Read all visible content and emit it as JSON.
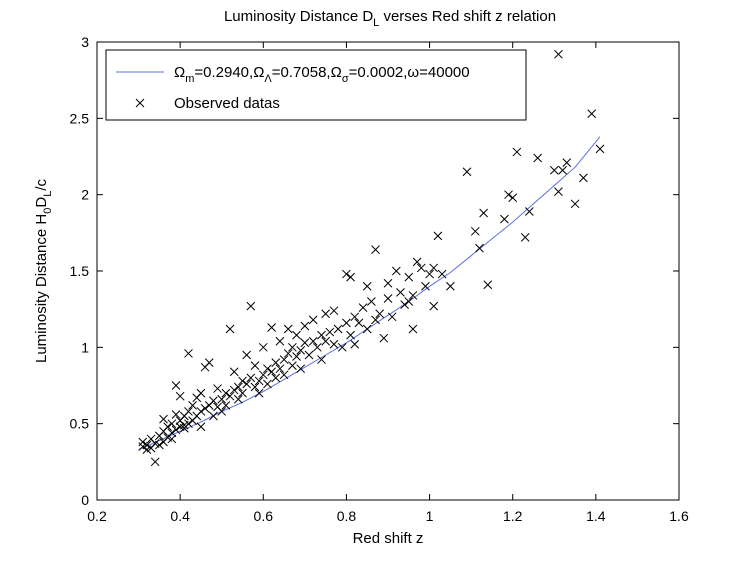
{
  "chart_data": {
    "type": "scatter",
    "title": "Luminosity Distance D",
    "title_sub": "L",
    "title_rest": " verses Red shift z relation",
    "xlabel": "Red shift z",
    "ylabel": "Luminosity Distance H",
    "ylabel_sub1": "0",
    "ylabel_mid": "D",
    "ylabel_sub2": "L",
    "ylabel_rest": "/c",
    "xlim": [
      0.2,
      1.6
    ],
    "ylim": [
      0,
      3
    ],
    "xticks": [
      "0.2",
      "0.4",
      "0.6",
      "0.8",
      "1",
      "1.2",
      "1.4",
      "1.6"
    ],
    "yticks": [
      "0",
      "0.5",
      "1",
      "1.5",
      "2",
      "2.5",
      "3"
    ],
    "grid": false,
    "legend_position": "top-left",
    "colors": {
      "model": "#5b6fe0",
      "observed": "#000000"
    },
    "series": [
      {
        "name": "Ω_m=0.2940,Ω_Λ=0.7058,Ω_σ=0.0002,ω=40000",
        "legend_parts": [
          {
            "text": "Ω",
            "sub": "m"
          },
          {
            "text": "=0.2940,Ω",
            "sub": "Λ"
          },
          {
            "text": "=0.7058,Ω",
            "sub": "σ"
          },
          {
            "text": "=0.0002,ω=40000",
            "sub": ""
          }
        ],
        "kind": "line",
        "x": [
          0.3,
          0.35,
          0.4,
          0.45,
          0.5,
          0.55,
          0.6,
          0.65,
          0.7,
          0.75,
          0.8,
          0.85,
          0.9,
          0.95,
          1.0,
          1.05,
          1.1,
          1.15,
          1.2,
          1.25,
          1.3,
          1.35,
          1.41
        ],
        "y": [
          0.33,
          0.39,
          0.45,
          0.51,
          0.58,
          0.64,
          0.71,
          0.79,
          0.87,
          0.95,
          1.03,
          1.12,
          1.21,
          1.3,
          1.4,
          1.49,
          1.6,
          1.71,
          1.82,
          1.94,
          2.06,
          2.18,
          2.38
        ]
      },
      {
        "name": "Observed datas",
        "kind": "scatter",
        "points": [
          [
            0.31,
            0.35
          ],
          [
            0.31,
            0.38
          ],
          [
            0.32,
            0.33
          ],
          [
            0.32,
            0.36
          ],
          [
            0.33,
            0.34
          ],
          [
            0.33,
            0.4
          ],
          [
            0.34,
            0.25
          ],
          [
            0.34,
            0.37
          ],
          [
            0.35,
            0.36
          ],
          [
            0.35,
            0.42
          ],
          [
            0.36,
            0.38
          ],
          [
            0.36,
            0.45
          ],
          [
            0.36,
            0.53
          ],
          [
            0.37,
            0.41
          ],
          [
            0.37,
            0.48
          ],
          [
            0.38,
            0.4
          ],
          [
            0.38,
            0.44
          ],
          [
            0.38,
            0.5
          ],
          [
            0.39,
            0.46
          ],
          [
            0.39,
            0.56
          ],
          [
            0.39,
            0.75
          ],
          [
            0.4,
            0.48
          ],
          [
            0.4,
            0.52
          ],
          [
            0.4,
            0.68
          ],
          [
            0.41,
            0.47
          ],
          [
            0.41,
            0.55
          ],
          [
            0.41,
            0.49
          ],
          [
            0.42,
            0.5
          ],
          [
            0.42,
            0.58
          ],
          [
            0.42,
            0.96
          ],
          [
            0.43,
            0.52
          ],
          [
            0.43,
            0.62
          ],
          [
            0.44,
            0.55
          ],
          [
            0.44,
            0.67
          ],
          [
            0.45,
            0.58
          ],
          [
            0.45,
            0.7
          ],
          [
            0.45,
            0.48
          ],
          [
            0.46,
            0.6
          ],
          [
            0.46,
            0.87
          ],
          [
            0.47,
            0.62
          ],
          [
            0.47,
            0.9
          ],
          [
            0.48,
            0.65
          ],
          [
            0.48,
            0.55
          ],
          [
            0.49,
            0.61
          ],
          [
            0.49,
            0.73
          ],
          [
            0.5,
            0.66
          ],
          [
            0.5,
            0.58
          ],
          [
            0.51,
            0.7
          ],
          [
            0.51,
            0.62
          ],
          [
            0.52,
            0.68
          ],
          [
            0.52,
            1.12
          ],
          [
            0.53,
            0.72
          ],
          [
            0.53,
            0.84
          ],
          [
            0.54,
            0.74
          ],
          [
            0.54,
            0.66
          ],
          [
            0.55,
            0.78
          ],
          [
            0.55,
            0.7
          ],
          [
            0.56,
            0.76
          ],
          [
            0.56,
            0.95
          ],
          [
            0.57,
            0.8
          ],
          [
            0.57,
            1.27
          ],
          [
            0.58,
            0.74
          ],
          [
            0.58,
            0.88
          ],
          [
            0.59,
            0.78
          ],
          [
            0.59,
            0.7
          ],
          [
            0.6,
            0.82
          ],
          [
            0.6,
            1.0
          ],
          [
            0.61,
            0.86
          ],
          [
            0.61,
            0.76
          ],
          [
            0.62,
            0.84
          ],
          [
            0.62,
            1.13
          ],
          [
            0.63,
            0.9
          ],
          [
            0.63,
            0.8
          ],
          [
            0.64,
            0.86
          ],
          [
            0.64,
            1.04
          ],
          [
            0.65,
            0.92
          ],
          [
            0.65,
            0.82
          ],
          [
            0.66,
            0.96
          ],
          [
            0.66,
            1.12
          ],
          [
            0.67,
            0.88
          ],
          [
            0.67,
            1.0
          ],
          [
            0.68,
            0.94
          ],
          [
            0.68,
            1.08
          ],
          [
            0.69,
            0.98
          ],
          [
            0.69,
            0.86
          ],
          [
            0.7,
            1.03
          ],
          [
            0.7,
            1.14
          ],
          [
            0.71,
            0.95
          ],
          [
            0.72,
            1.04
          ],
          [
            0.72,
            1.18
          ],
          [
            0.73,
            1.0
          ],
          [
            0.74,
            1.08
          ],
          [
            0.74,
            0.92
          ],
          [
            0.75,
            1.04
          ],
          [
            0.75,
            1.22
          ],
          [
            0.76,
            1.1
          ],
          [
            0.77,
            1.02
          ],
          [
            0.77,
            1.24
          ],
          [
            0.78,
            1.12
          ],
          [
            0.79,
            1.0
          ],
          [
            0.8,
            1.16
          ],
          [
            0.8,
            1.48
          ],
          [
            0.81,
            1.46
          ],
          [
            0.81,
            1.08
          ],
          [
            0.82,
            1.2
          ],
          [
            0.82,
            1.02
          ],
          [
            0.83,
            1.16
          ],
          [
            0.84,
            1.26
          ],
          [
            0.85,
            1.12
          ],
          [
            0.85,
            1.4
          ],
          [
            0.86,
            1.3
          ],
          [
            0.87,
            1.64
          ],
          [
            0.87,
            1.18
          ],
          [
            0.88,
            1.22
          ],
          [
            0.89,
            1.06
          ],
          [
            0.9,
            1.32
          ],
          [
            0.9,
            1.42
          ],
          [
            0.91,
            1.2
          ],
          [
            0.92,
            1.5
          ],
          [
            0.93,
            1.36
          ],
          [
            0.94,
            1.28
          ],
          [
            0.95,
            1.3
          ],
          [
            0.95,
            1.46
          ],
          [
            0.96,
            1.34
          ],
          [
            0.96,
            1.12
          ],
          [
            0.97,
            1.56
          ],
          [
            0.98,
            1.52
          ],
          [
            0.99,
            1.4
          ],
          [
            1.0,
            1.48
          ],
          [
            1.01,
            1.52
          ],
          [
            1.01,
            1.27
          ],
          [
            1.02,
            1.73
          ],
          [
            1.03,
            1.48
          ],
          [
            1.05,
            1.4
          ],
          [
            1.09,
            2.15
          ],
          [
            1.11,
            1.76
          ],
          [
            1.12,
            1.65
          ],
          [
            1.13,
            1.88
          ],
          [
            1.14,
            1.41
          ],
          [
            1.18,
            1.84
          ],
          [
            1.19,
            2.0
          ],
          [
            1.2,
            1.98
          ],
          [
            1.21,
            2.28
          ],
          [
            1.23,
            1.72
          ],
          [
            1.24,
            1.89
          ],
          [
            1.26,
            2.24
          ],
          [
            1.3,
            2.16
          ],
          [
            1.31,
            2.02
          ],
          [
            1.32,
            2.16
          ],
          [
            1.33,
            2.21
          ],
          [
            1.35,
            1.94
          ],
          [
            1.37,
            2.11
          ],
          [
            1.31,
            2.92
          ],
          [
            1.39,
            2.53
          ],
          [
            1.41,
            2.3
          ]
        ]
      }
    ]
  }
}
